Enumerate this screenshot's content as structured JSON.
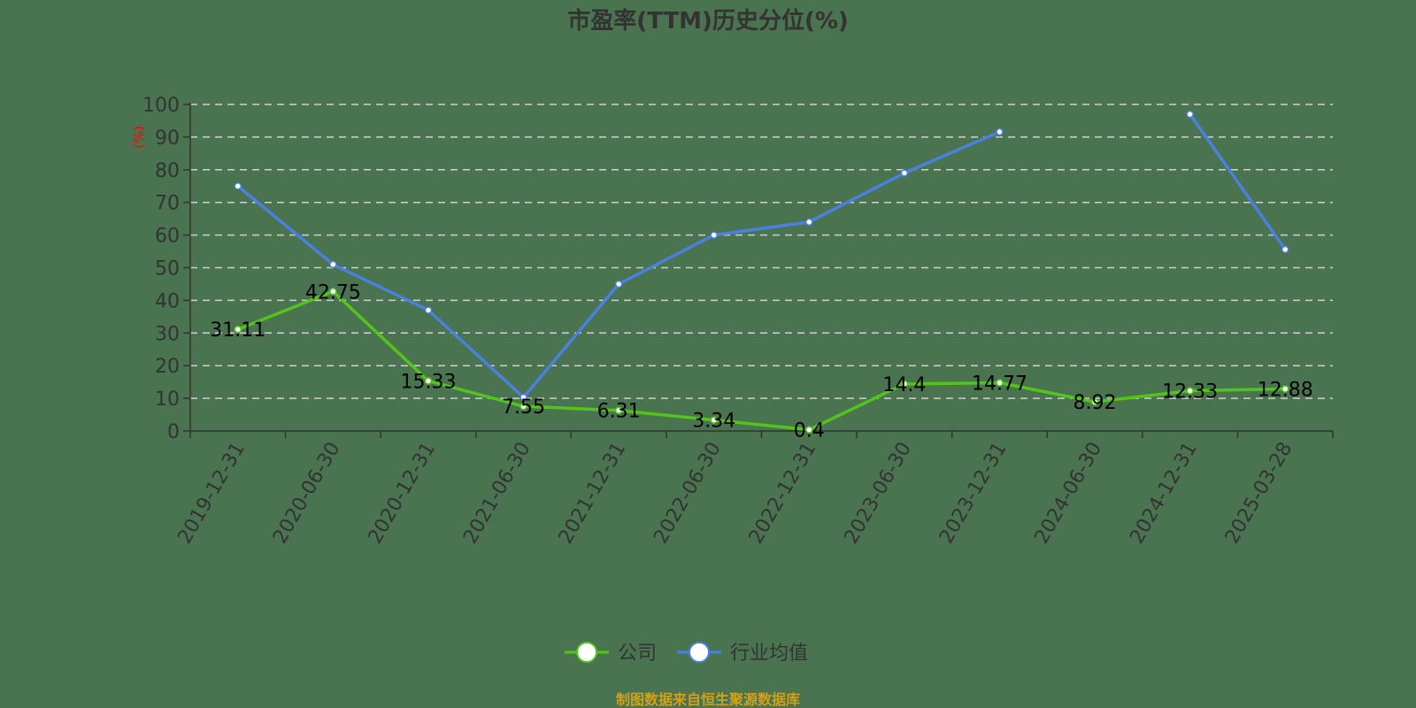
{
  "chart_data": {
    "type": "line",
    "title": "市盈率(TTM)历史分位(%)",
    "xlabel": "",
    "ylabel": "(%)",
    "ylim": [
      0,
      100
    ],
    "yticks": [
      0,
      10,
      20,
      30,
      40,
      50,
      60,
      70,
      80,
      90,
      100
    ],
    "grid": "horizontal dashed",
    "legend_position": "bottom-center",
    "categories": [
      "2019-12-31",
      "2020-06-30",
      "2020-12-31",
      "2021-06-30",
      "2021-12-31",
      "2022-06-30",
      "2022-12-31",
      "2023-06-30",
      "2023-12-31",
      "2024-06-30",
      "2024-12-31",
      "2025-03-28"
    ],
    "series": [
      {
        "name": "公司",
        "color": "#52c41a",
        "values": [
          31.11,
          42.75,
          15.33,
          7.55,
          6.31,
          3.34,
          0.4,
          14.4,
          14.77,
          8.92,
          12.33,
          12.88
        ],
        "labels_shown": true
      },
      {
        "name": "行业均值",
        "color": "#4a80e0",
        "values": [
          75,
          51,
          37,
          10.3,
          45,
          60,
          64,
          79,
          91.6,
          null,
          97,
          55.6
        ],
        "labels_shown": false
      }
    ],
    "source_note": "制图数据来自恒生聚源数据库"
  },
  "colors": {
    "background": "#4a7350",
    "company_line": "#52c41a",
    "industry_line": "#4a80e0",
    "axis": "#333333",
    "grid": "#d0d0d0",
    "source_text": "#d4a017",
    "ylabel": "#ff0000"
  }
}
